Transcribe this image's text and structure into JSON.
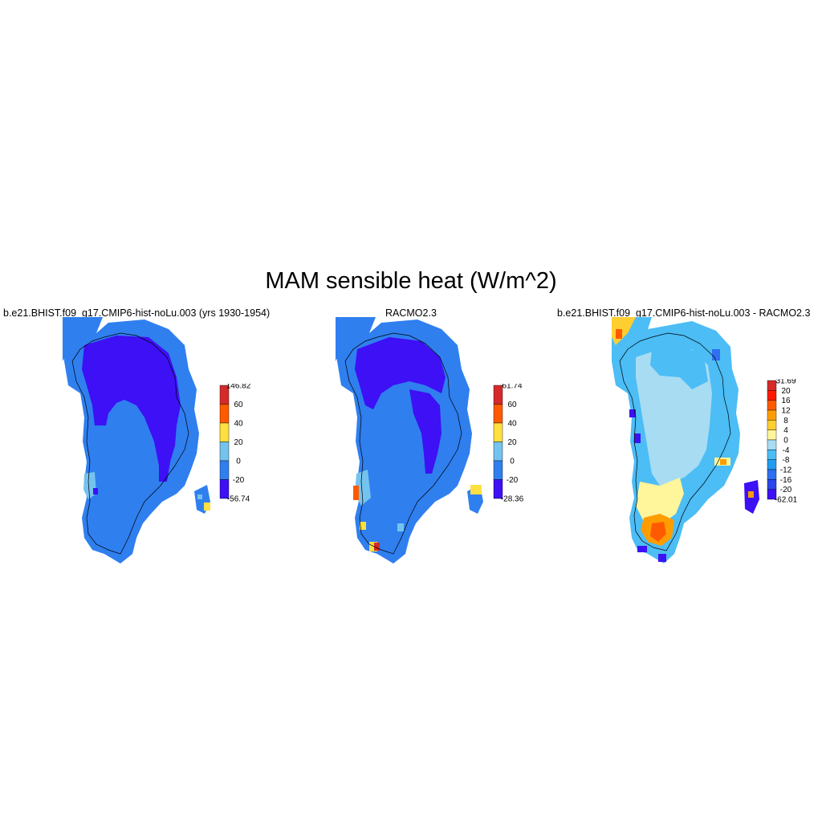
{
  "title": "MAM sensible heat (W/m^2)",
  "panels": [
    {
      "id": "model",
      "title": "b.e21.BHIST.f09_g17.CMIP6-hist-noLu.003 (yrs 1930-1954)",
      "colorbar": {
        "labels": [
          "146.82",
          "60",
          "40",
          "20",
          "0",
          "-20",
          "-56.74"
        ],
        "colors": [
          "#d62a2a",
          "#ff5a00",
          "#ffe040",
          "#74c3ef",
          "#2f7fef",
          "#3d10f5"
        ]
      }
    },
    {
      "id": "obs",
      "title": "RACMO2.3",
      "colorbar": {
        "labels": [
          "61.74",
          "60",
          "40",
          "20",
          "0",
          "-20",
          "-28.36"
        ],
        "colors": [
          "#d62a2a",
          "#ff5a00",
          "#ffe040",
          "#74c3ef",
          "#2f7fef",
          "#3d10f5"
        ]
      }
    },
    {
      "id": "diff",
      "title": "b.e21.BHIST.f09_g17.CMIP6-hist-noLu.003 - RACMO2.3",
      "colorbar": {
        "labels": [
          "31.69",
          "20",
          "16",
          "12",
          "8",
          "4",
          "0",
          "-4",
          "-8",
          "-12",
          "-16",
          "-20",
          "-62.01"
        ],
        "colors": [
          "#d62a2a",
          "#ff1a00",
          "#ff5a00",
          "#ff9d00",
          "#ffce30",
          "#fff59a",
          "#a8dcf2",
          "#4cbdf5",
          "#1f9cf0",
          "#2f6ff0",
          "#2a46ec",
          "#3d10f5"
        ]
      }
    }
  ]
}
